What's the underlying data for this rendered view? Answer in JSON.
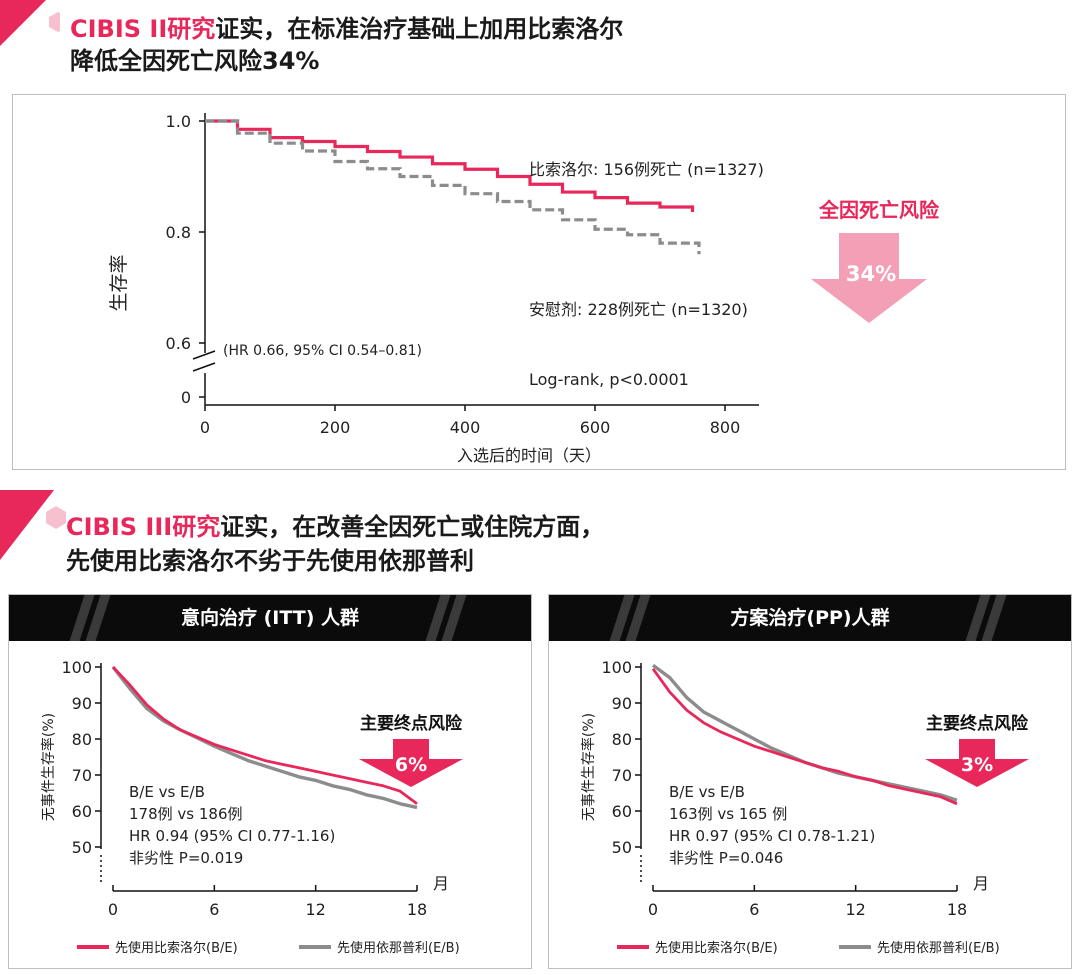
{
  "section1": {
    "title_pink": "CIBIS II研究",
    "title_rest_line1": "证实，在标准治疗基础上加用比索洛尔",
    "title_line2": "降低全因死亡风险34%"
  },
  "section2": {
    "title_pink": "CIBIS III研究",
    "title_rest_line1": "证实，在改善全因死亡或住院方面，",
    "title_line2": "先使用比索洛尔不劣于先使用依那普利"
  },
  "chart1": {
    "series_label_bisoprolol": "比索洛尔:  156例死亡 (n=1327)",
    "series_label_placebo": "安慰剂:     228例死亡 (n=1320)",
    "hr_text": "(HR 0.66, 95% CI 0.54–0.81)",
    "logrank_text": "Log-rank, p<0.0001",
    "risk_title": "全因死亡风险",
    "risk_value": "34%"
  },
  "chart2": {
    "header": "意向治疗 (ITT) 人群",
    "risk_title": "主要终点风险",
    "risk_value": "6%",
    "stats": [
      "B/E vs E/B",
      "178例 vs 186例",
      "HR 0.94 (95% CI 0.77-1.16)",
      "非劣性 P=0.019"
    ],
    "legend_be": "先使用比索洛尔(B/E)",
    "legend_eb": "先使用依那普利(E/B)"
  },
  "chart3": {
    "header": "方案治疗(PP)人群",
    "risk_title": "主要终点风险",
    "risk_value": "3%",
    "stats": [
      "B/E vs E/B",
      "163例 vs 165 例",
      "HR 0.97 (95% CI 0.78-1.21)",
      "非劣性 P=0.046"
    ],
    "legend_be": "先使用比索洛尔(B/E)",
    "legend_eb": "先使用依那普利(E/B)"
  },
  "colors": {
    "accent": "#e8275a",
    "gray": "#8c8c8c",
    "arrow_pink": "#f3a0b6",
    "header_black": "#0b0b0b"
  },
  "chart_data": [
    {
      "type": "line",
      "ylabel": "生存率",
      "xlabel": "入选后的时间（天）",
      "x_ticks": [
        0,
        200,
        400,
        600,
        800
      ],
      "y_ticks": [
        0,
        0.6,
        0.8,
        1.0
      ],
      "xlim": [
        0,
        850
      ],
      "ylim": [
        0.6,
        1.0
      ],
      "y_break": true,
      "series": [
        {
          "name": "比索洛尔",
          "color": "#e8275a",
          "dash": false,
          "x": [
            0,
            50,
            100,
            150,
            200,
            250,
            300,
            350,
            400,
            450,
            500,
            550,
            600,
            650,
            700,
            750
          ],
          "y": [
            1.0,
            0.985,
            0.97,
            0.963,
            0.954,
            0.945,
            0.935,
            0.923,
            0.913,
            0.9,
            0.886,
            0.872,
            0.862,
            0.852,
            0.845,
            0.836
          ]
        },
        {
          "name": "安慰剂",
          "color": "#8c8c8c",
          "dash": true,
          "x": [
            0,
            50,
            100,
            150,
            200,
            250,
            300,
            350,
            400,
            450,
            500,
            550,
            600,
            650,
            700,
            760
          ],
          "y": [
            1.0,
            0.978,
            0.96,
            0.946,
            0.927,
            0.914,
            0.9,
            0.884,
            0.869,
            0.855,
            0.84,
            0.822,
            0.805,
            0.795,
            0.78,
            0.76
          ]
        }
      ]
    },
    {
      "type": "line",
      "ylabel": "无事件生存率(%)",
      "xlabel": "月",
      "x_ticks": [
        0,
        6,
        12,
        18
      ],
      "y_ticks": [
        50,
        60,
        70,
        80,
        90,
        100
      ],
      "xlim": [
        0,
        18
      ],
      "ylim": [
        50,
        100
      ],
      "series": [
        {
          "name": "先使用比索洛尔(B/E)",
          "color": "#e8275a",
          "x": [
            0,
            1,
            2,
            3,
            4,
            5,
            6,
            7,
            8,
            9,
            10,
            11,
            12,
            13,
            14,
            15,
            16,
            17,
            18
          ],
          "y": [
            100,
            95,
            89.5,
            85.5,
            82.5,
            80.5,
            78.5,
            77,
            75.5,
            74,
            73,
            72,
            71,
            70,
            69,
            68,
            67,
            65.5,
            62
          ]
        },
        {
          "name": "先使用依那普利(E/B)",
          "color": "#8c8c8c",
          "x": [
            0,
            1,
            2,
            3,
            4,
            5,
            6,
            7,
            8,
            9,
            10,
            11,
            12,
            13,
            14,
            15,
            16,
            17,
            18
          ],
          "y": [
            100,
            94,
            88.5,
            85,
            82.5,
            80.3,
            78,
            76,
            74,
            72.5,
            71,
            69.5,
            68.5,
            67,
            66,
            64.5,
            63.5,
            62,
            61
          ]
        }
      ]
    },
    {
      "type": "line",
      "ylabel": "无事件生存率(%)",
      "xlabel": "月",
      "x_ticks": [
        0,
        6,
        12,
        18
      ],
      "y_ticks": [
        50,
        60,
        70,
        80,
        90,
        100
      ],
      "xlim": [
        0,
        18
      ],
      "ylim": [
        50,
        100
      ],
      "series": [
        {
          "name": "先使用比索洛尔(B/E)",
          "color": "#e8275a",
          "x": [
            0,
            1,
            2,
            3,
            4,
            5,
            6,
            7,
            8,
            9,
            10,
            11,
            12,
            13,
            14,
            15,
            16,
            17,
            18
          ],
          "y": [
            99.5,
            93,
            88,
            84.5,
            82,
            80,
            78,
            76.5,
            75,
            73.5,
            72,
            71,
            69.5,
            68.5,
            67,
            66,
            65,
            64,
            62
          ]
        },
        {
          "name": "先使用依那普利(E/B)",
          "color": "#8c8c8c",
          "x": [
            0,
            1,
            2,
            3,
            4,
            5,
            6,
            7,
            8,
            9,
            10,
            11,
            12,
            13,
            14,
            15,
            16,
            17,
            18
          ],
          "y": [
            100.5,
            97,
            91.5,
            87.5,
            85,
            82.5,
            80,
            77.5,
            75.5,
            73.5,
            72,
            70.5,
            69.5,
            68.5,
            67.5,
            66.5,
            65.5,
            64.5,
            63
          ]
        }
      ]
    }
  ]
}
